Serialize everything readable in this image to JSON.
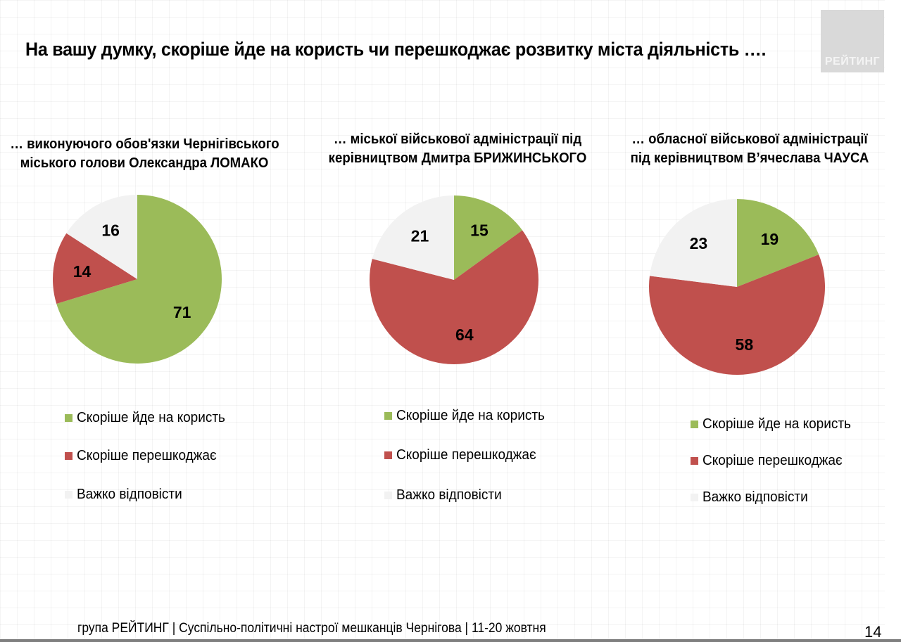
{
  "header": {
    "title": "На вашу думку,  скоріше йде на користь чи перешкоджає розвитку міста діяльність ….",
    "logo_text": "РЕЙТИНГ"
  },
  "colors": {
    "benefit": "#9bbb59",
    "hinder": "#c0504d",
    "hard_to_say": "#f2f2f2"
  },
  "legend_labels": [
    "Скоріше йде на користь",
    "Скоріше перешкоджає",
    "Важко відповісти"
  ],
  "chart_data": [
    {
      "type": "pie",
      "title": "… виконуючого обов'язки Чернігівського міського голови Олександра ЛОМАКО",
      "title_lines": [
        "… виконуючого обов'язки Чернігівського",
        "міського голови Олександра ЛОМАКО"
      ],
      "categories": [
        "Скоріше йде на користь",
        "Скоріше перешкоджає",
        "Важко відповісти"
      ],
      "values": [
        71,
        14,
        16
      ],
      "labels": [
        "71",
        "14",
        "16"
      ],
      "start_angle": "12 o'clock, clockwise",
      "legend": "bottom"
    },
    {
      "type": "pie",
      "title": "… міської військової адміністрації під керівництвом Дмитра БРИЖИНСЬКОГО",
      "title_lines": [
        "… міської військової адміністрації під",
        "керівництвом Дмитра БРИЖИНСЬКОГО"
      ],
      "categories": [
        "Скоріше йде на користь",
        "Скоріше перешкоджає",
        "Важко відповісти"
      ],
      "values": [
        15,
        64,
        21
      ],
      "labels": [
        "15",
        "64",
        "21"
      ],
      "start_angle": "12 o'clock, clockwise",
      "legend": "bottom"
    },
    {
      "type": "pie",
      "title": "… обласної військової адміністрації під керівництвом В’ячеслава ЧАУСА",
      "title_lines": [
        "… обласної військової адміністрації",
        "під керівництвом В’ячеслава ЧАУСА"
      ],
      "categories": [
        "Скоріше йде на користь",
        "Скоріше перешкоджає",
        "Важко відповісти"
      ],
      "values": [
        19,
        58,
        23
      ],
      "labels": [
        "19",
        "58",
        "23"
      ],
      "start_angle": "12 o'clock, clockwise",
      "legend": "bottom"
    }
  ],
  "footer": {
    "text": "група РЕЙТИНГ  | Суспільно-політичні настрої мешканців Чернігова | 11-20 жовтня",
    "page_number": "14"
  }
}
